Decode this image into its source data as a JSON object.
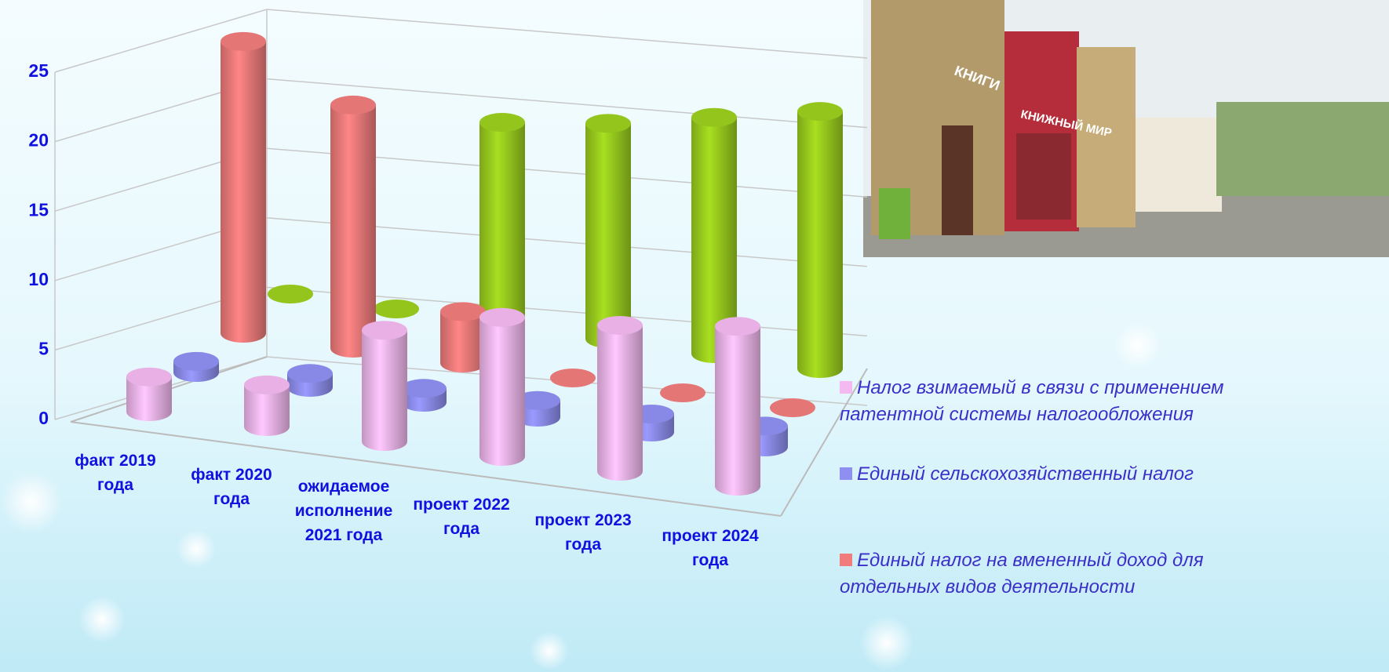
{
  "chart_data": {
    "type": "cylinder3d",
    "categories": [
      "факт 2019 года",
      "факт 2020 года",
      "ожидаемое исполнение 2021 года",
      "проект 2022 года",
      "проект 2023 года",
      "проект 2024 года"
    ],
    "series": [
      {
        "name": "Налог взимаемый в связи с применением патентной системы налогообложения",
        "color": "#f4b9f0",
        "values": [
          2.5,
          3,
          8,
          10,
          10.5,
          11.5
        ]
      },
      {
        "name": "Единый сельскохозяйственный налог",
        "color": "#8f8ff2",
        "values": [
          0.8,
          1,
          1,
          1.2,
          1.3,
          1.5
        ]
      },
      {
        "name": "Единый налог на вмененный доход для отдельных видов деятельности",
        "color": "#f17c7c",
        "values": [
          21,
          17.5,
          3.7,
          0,
          0,
          0
        ]
      },
      {
        "color": "#9ccf1e",
        "values": [
          0,
          0,
          14.5,
          15.5,
          17,
          18.5
        ]
      }
    ],
    "ylim": [
      0,
      25
    ],
    "yticks": [
      0,
      5,
      10,
      15,
      20,
      25
    ],
    "grid": true
  },
  "photo_signs": [
    "КНИГИ",
    "КНИЖНЫЙ МИР"
  ]
}
